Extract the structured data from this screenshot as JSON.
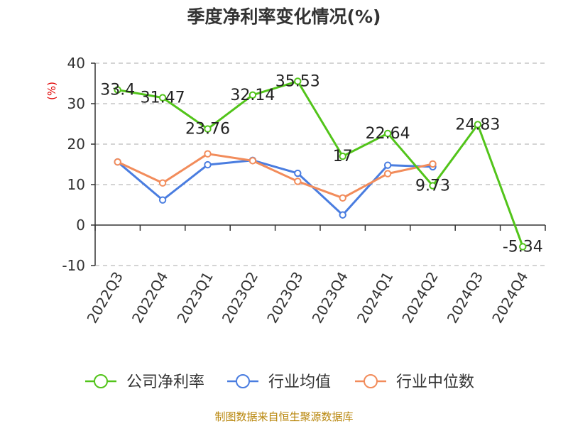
{
  "chart_data": {
    "type": "line",
    "title": "季度净利率变化情况(%)",
    "ylabel": "(%)",
    "xlabel": "",
    "categories": [
      "2022Q3",
      "2022Q4",
      "2023Q1",
      "2023Q2",
      "2023Q3",
      "2023Q4",
      "2024Q1",
      "2024Q2",
      "2024Q3",
      "2024Q4"
    ],
    "ylim": [
      -10,
      40
    ],
    "yticks": [
      -10,
      0,
      10,
      20,
      30,
      40
    ],
    "grid": true,
    "legend_position": "bottom",
    "series": [
      {
        "name": "公司净利率",
        "color": "#52c41a",
        "values": [
          33.4,
          31.47,
          23.76,
          32.14,
          35.53,
          17,
          22.64,
          9.73,
          24.83,
          -5.34
        ],
        "labels": [
          "33.4",
          "31.47",
          "23.76",
          "32.14",
          "35.53",
          "17",
          "22.64",
          "9.73",
          "24.83",
          "-5.34"
        ],
        "label_offsets_dy": [
          -0.4,
          -0.3,
          -0.3,
          -0.3,
          -0.3,
          -0.3,
          -0.3,
          -0.2,
          -0.3,
          -0.2
        ]
      },
      {
        "name": "行业均值",
        "color": "#4a7de0",
        "values": [
          15.6,
          6.2,
          14.9,
          16.0,
          12.8,
          2.5,
          14.8,
          14.4,
          null,
          null
        ]
      },
      {
        "name": "行业中位数",
        "color": "#f28c5b",
        "values": [
          15.6,
          10.4,
          17.6,
          15.9,
          10.8,
          6.7,
          12.7,
          15.1,
          null,
          null
        ]
      }
    ],
    "source": "制图数据来自恒生聚源数据库"
  }
}
